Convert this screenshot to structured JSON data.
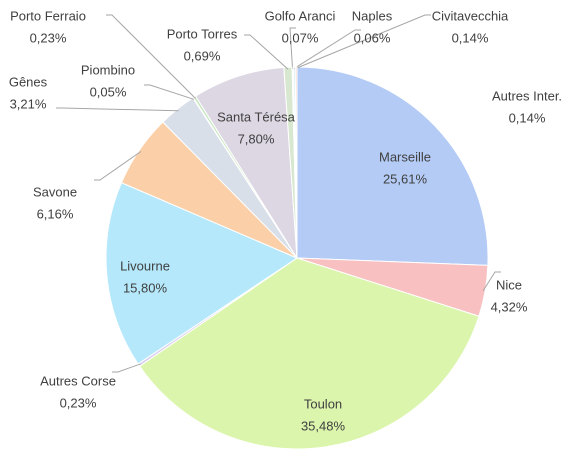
{
  "chart_data": {
    "type": "pie",
    "categories": [
      "Marseille",
      "Nice",
      "Toulon",
      "Autres Corse",
      "Livourne",
      "Savone",
      "Gênes",
      "Piombino",
      "Porto Ferraio",
      "Santa Térésa",
      "Porto Torres",
      "Golfo Aranci",
      "Naples",
      "Civitavecchia",
      "Autres Inter."
    ],
    "values": [
      25.61,
      4.32,
      35.48,
      0.23,
      15.8,
      6.16,
      3.21,
      0.05,
      0.23,
      7.8,
      0.69,
      0.07,
      0.06,
      0.14,
      0.14
    ],
    "value_labels": [
      "25,61%",
      "4,32%",
      "35,48%",
      "0,23%",
      "15,80%",
      "6,16%",
      "3,21%",
      "0,05%",
      "0,23%",
      "7,80%",
      "0,69%",
      "0,07%",
      "0,06%",
      "0,14%",
      "0,14%"
    ],
    "colors": [
      "#b3cbf5",
      "#f8c0c0",
      "#dcf5ad",
      "#d6cdee",
      "#b5e8fb",
      "#fbd0a8",
      "#d9dfe9",
      "#e8d8c0",
      "#c8e6c0",
      "#ddd6e3",
      "#d8e8d0",
      "#f0e0b0",
      "#e0d0f0",
      "#c8e8f0",
      "#f4d8c8"
    ]
  }
}
